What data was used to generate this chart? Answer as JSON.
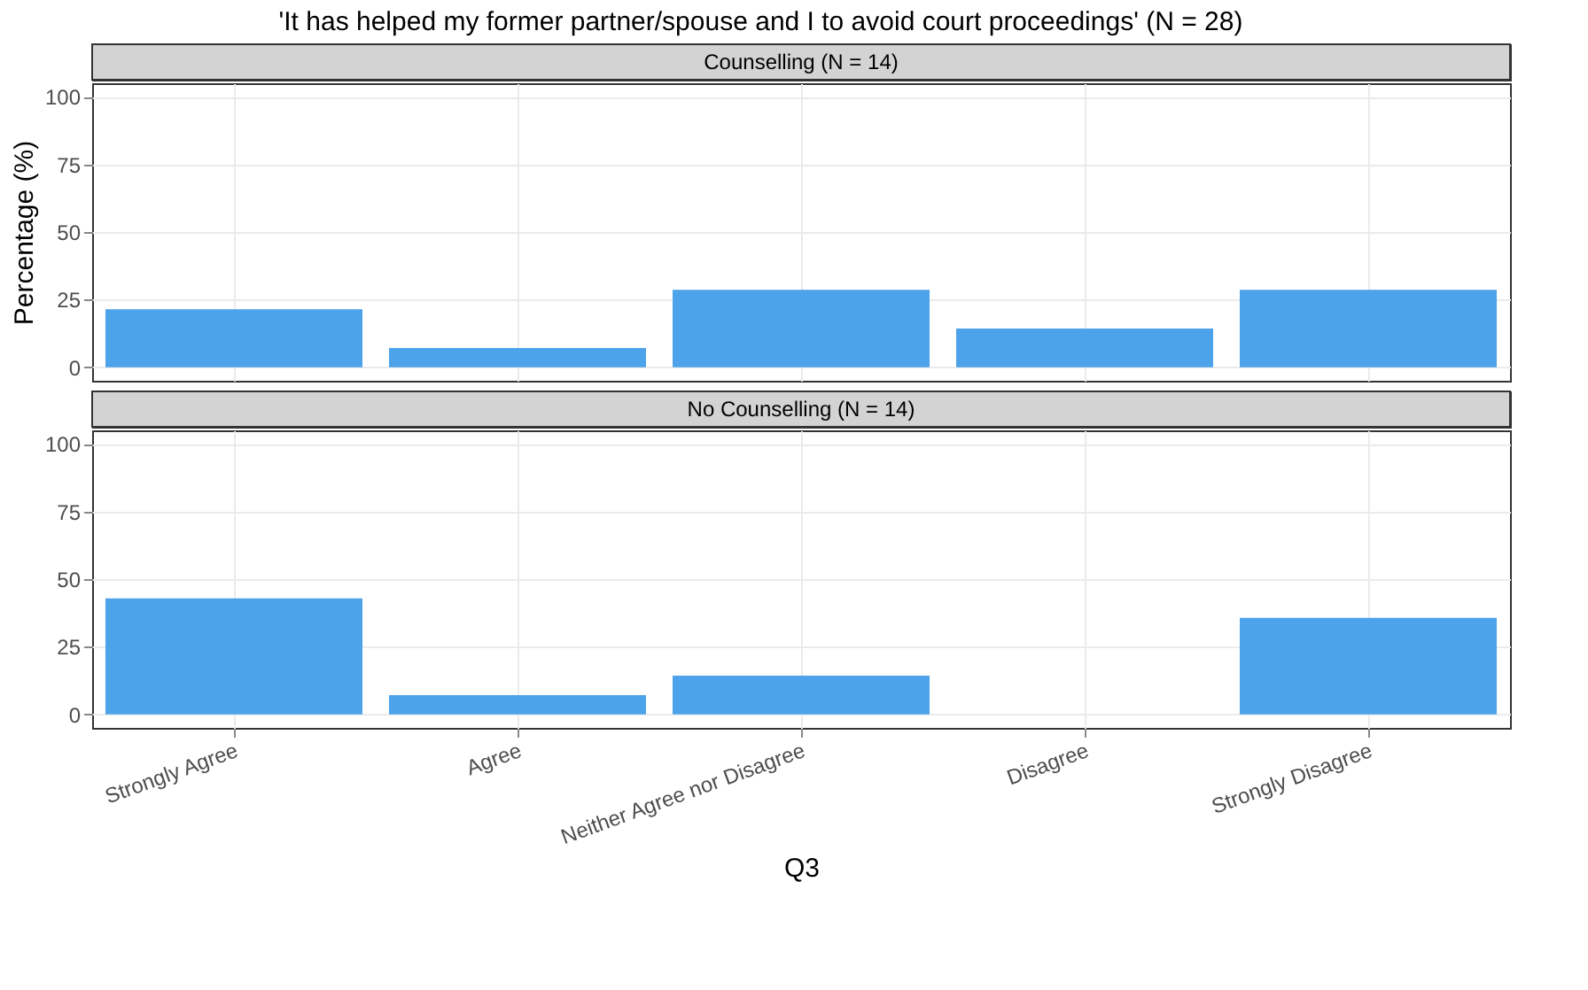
{
  "chart_data": [
    {
      "type": "bar",
      "title": "'It has helped my former partner/spouse and I to avoid court proceedings' (N = 28)",
      "subtitle": "Counselling (N = 14)",
      "ylabel": "Percentage (%)",
      "categories": [
        null,
        null,
        null,
        null,
        null
      ],
      "values": [
        21.4,
        7.1,
        28.6,
        14.3,
        28.6
      ],
      "color": "#4da3ea",
      "ylim": [
        -5,
        105
      ],
      "yticks": [
        0,
        25,
        50,
        75,
        100
      ],
      "grid": true,
      "tick_labels": "y"
    },
    {
      "type": "bar",
      "subtitle": "No Counselling (N = 14)",
      "xlabel": "Q3",
      "categories": [
        "Strongly Agree",
        "Agree",
        "Neither Agree nor Disagree",
        "Disagree",
        "Strongly Disagree"
      ],
      "values": [
        42.9,
        7.1,
        14.3,
        0,
        35.7
      ],
      "color": "#4da3ea",
      "ylim": [
        -5,
        105
      ],
      "yticks": [
        0,
        25,
        50,
        75,
        100
      ],
      "grid": true
    }
  ]
}
